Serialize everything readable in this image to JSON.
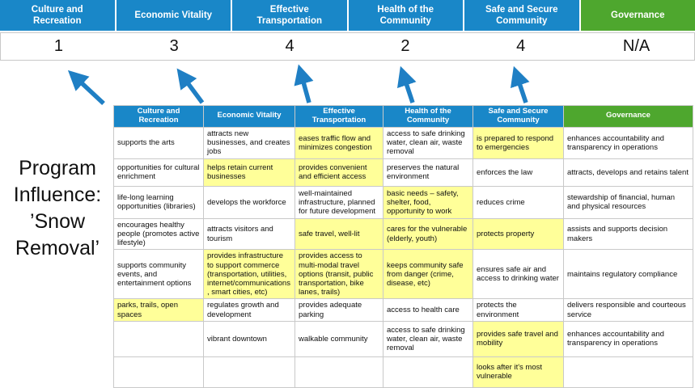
{
  "colors": {
    "header_blue": "#1987C8",
    "header_green": "#4EA72E",
    "highlight_yellow": "#FFFF99",
    "arrow_blue": "#1F7FC4"
  },
  "scoreboard": {
    "columns": [
      {
        "label": "Culture and Recreation",
        "score": "1",
        "theme": "blue"
      },
      {
        "label": "Economic Vitality",
        "score": "3",
        "theme": "blue"
      },
      {
        "label": "Effective Transportation",
        "score": "4",
        "theme": "blue"
      },
      {
        "label": "Health of the Community",
        "score": "2",
        "theme": "blue"
      },
      {
        "label": "Safe and Secure Community",
        "score": "4",
        "theme": "blue"
      },
      {
        "label": "Governance",
        "score": "N/A",
        "theme": "green"
      }
    ]
  },
  "program_influence": {
    "text": "Program Influence: ’Snow Removal’"
  },
  "matrix": {
    "headers": [
      {
        "label": "Culture and Recreation",
        "theme": "blue"
      },
      {
        "label": "Economic Vitality",
        "theme": "blue"
      },
      {
        "label": "Effective Transportation",
        "theme": "blue"
      },
      {
        "label": "Health of the Community",
        "theme": "blue"
      },
      {
        "label": "Safe and Secure Community",
        "theme": "blue"
      },
      {
        "label": "Governance",
        "theme": "green"
      }
    ],
    "rows": [
      [
        {
          "text": "supports the arts",
          "highlight": false
        },
        {
          "text": "attracts new businesses, and creates jobs",
          "highlight": false
        },
        {
          "text": "eases traffic flow and minimizes congestion",
          "highlight": true
        },
        {
          "text": "access to safe drinking water, clean air, waste removal",
          "highlight": false
        },
        {
          "text": "is prepared to respond to emergencies",
          "highlight": true
        },
        {
          "text": "enhances accountability and transparency in operations",
          "highlight": false
        }
      ],
      [
        {
          "text": "opportunities for cultural enrichment",
          "highlight": false
        },
        {
          "text": "helps retain current businesses",
          "highlight": true
        },
        {
          "text": "provides convenient and efficient access",
          "highlight": true
        },
        {
          "text": "preserves the natural environment",
          "highlight": false
        },
        {
          "text": "enforces the law",
          "highlight": false
        },
        {
          "text": "attracts, develops and retains talent",
          "highlight": false
        }
      ],
      [
        {
          "text": "life-long learning opportunities (libraries)",
          "highlight": false
        },
        {
          "text": "develops the workforce",
          "highlight": false
        },
        {
          "text": "well-maintained infrastructure, planned for future development",
          "highlight": false
        },
        {
          "text": "basic needs – safety, shelter, food, opportunity to work",
          "highlight": true
        },
        {
          "text": "reduces crime",
          "highlight": false
        },
        {
          "text": "stewardship of financial, human and physical resources",
          "highlight": false
        }
      ],
      [
        {
          "text": "encourages healthy people (promotes active lifestyle)",
          "highlight": false
        },
        {
          "text": "attracts visitors and tourism",
          "highlight": false
        },
        {
          "text": "safe travel, well-lit",
          "highlight": true
        },
        {
          "text": "cares for the vulnerable (elderly, youth)",
          "highlight": true
        },
        {
          "text": "protects property",
          "highlight": true
        },
        {
          "text": "assists and supports decision makers",
          "highlight": false
        }
      ],
      [
        {
          "text": "supports community events, and entertainment options",
          "highlight": false
        },
        {
          "text": "provides infrastructure to support commerce (transportation, utilities, internet/communications, smart cities, etc)",
          "highlight": true
        },
        {
          "text": "provides access to multi-modal travel options (transit, public transportation, bike lanes, trails)",
          "highlight": true
        },
        {
          "text": "keeps community safe from danger (crime, disease, etc)",
          "highlight": true
        },
        {
          "text": "ensures safe air and access to drinking water",
          "highlight": false
        },
        {
          "text": "maintains regulatory compliance",
          "highlight": false
        }
      ],
      [
        {
          "text": "parks, trails, open spaces",
          "highlight": true
        },
        {
          "text": "regulates growth and development",
          "highlight": false
        },
        {
          "text": "provides adequate parking",
          "highlight": false
        },
        {
          "text": "access to health care",
          "highlight": false
        },
        {
          "text": "protects the environment",
          "highlight": false
        },
        {
          "text": "delivers responsible and courteous service",
          "highlight": false
        }
      ],
      [
        {
          "text": "",
          "highlight": false
        },
        {
          "text": "vibrant downtown",
          "highlight": false
        },
        {
          "text": "walkable community",
          "highlight": false
        },
        {
          "text": "access to safe drinking water, clean air, waste removal",
          "highlight": false
        },
        {
          "text": "provides safe travel and mobility",
          "highlight": true
        },
        {
          "text": "enhances accountability and transparency in operations",
          "highlight": false
        }
      ],
      [
        {
          "text": "",
          "highlight": false
        },
        {
          "text": "",
          "highlight": false
        },
        {
          "text": "",
          "highlight": false
        },
        {
          "text": "",
          "highlight": false
        },
        {
          "text": "looks after it's most vulnerable",
          "highlight": true
        },
        {
          "text": "",
          "highlight": false
        }
      ]
    ]
  }
}
